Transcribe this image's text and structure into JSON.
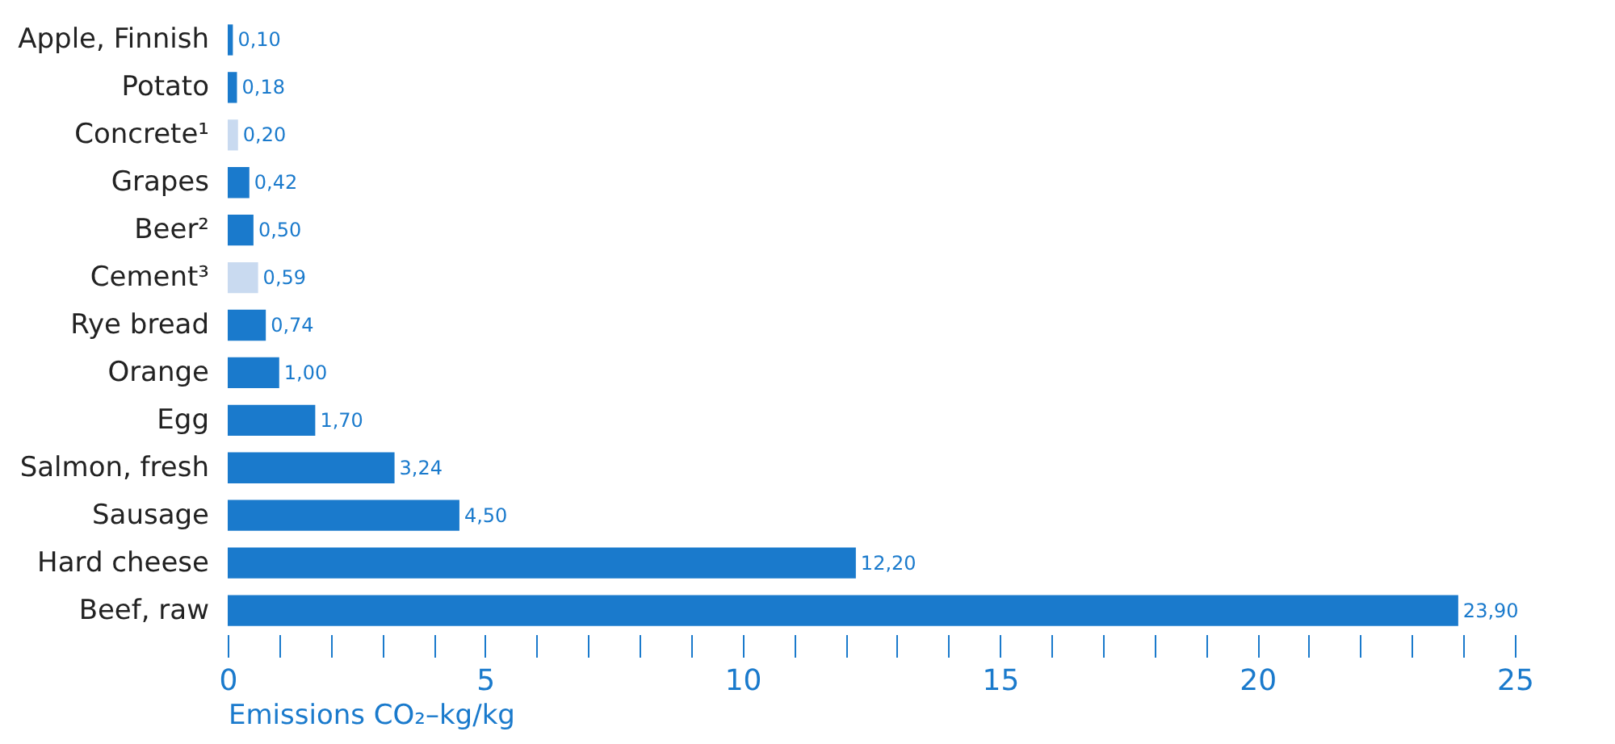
{
  "chart_data": {
    "type": "bar",
    "orientation": "horizontal",
    "categories": [
      "Apple, Finnish",
      "Potato",
      "Concrete¹",
      "Grapes",
      "Beer²",
      "Cement³",
      "Rye bread",
      "Orange",
      "Egg",
      "Salmon, fresh",
      "Sausage",
      "Hard cheese",
      "Beef, raw"
    ],
    "values": [
      0.1,
      0.18,
      0.2,
      0.42,
      0.5,
      0.59,
      0.74,
      1.0,
      1.7,
      3.24,
      4.5,
      12.2,
      23.9
    ],
    "colors": [
      "#1a7acc",
      "#1a7acc",
      "#c9daf0",
      "#1a7acc",
      "#1a7acc",
      "#c9daf0",
      "#1a7acc",
      "#1a7acc",
      "#1a7acc",
      "#1a7acc",
      "#1a7acc",
      "#1a7acc",
      "#1a7acc"
    ],
    "value_labels": [
      "0,10",
      "0,18",
      "0,20",
      "0,42",
      "0,50",
      "0,59",
      "0,74",
      "1,00",
      "1,70",
      "3,24",
      "4,50",
      "12,20",
      "23,90"
    ],
    "xlabel": "Emissions CO₂–kg/kg",
    "xlim": [
      0,
      25
    ],
    "xticks": [
      0,
      {
        "value": 1,
        "label": null
      },
      {
        "value": 2,
        "label": null
      },
      {
        "value": 3,
        "label": null
      },
      {
        "value": 4,
        "label": null
      },
      5,
      {
        "value": 6,
        "label": null
      },
      {
        "value": 7,
        "label": null
      },
      {
        "value": 8,
        "label": null
      },
      {
        "value": 9,
        "label": null
      },
      10,
      {
        "value": 11,
        "label": null
      },
      {
        "value": 12,
        "label": null
      },
      {
        "value": 13,
        "label": null
      },
      {
        "value": 14,
        "label": null
      },
      15,
      {
        "value": 16,
        "label": null
      },
      {
        "value": 17,
        "label": null
      },
      {
        "value": 18,
        "label": null
      },
      {
        "value": 19,
        "label": null
      },
      20,
      {
        "value": 21,
        "label": null
      },
      {
        "value": 22,
        "label": null
      },
      {
        "value": 23,
        "label": null
      },
      {
        "value": 24,
        "label": null
      },
      25
    ],
    "grid": false
  }
}
